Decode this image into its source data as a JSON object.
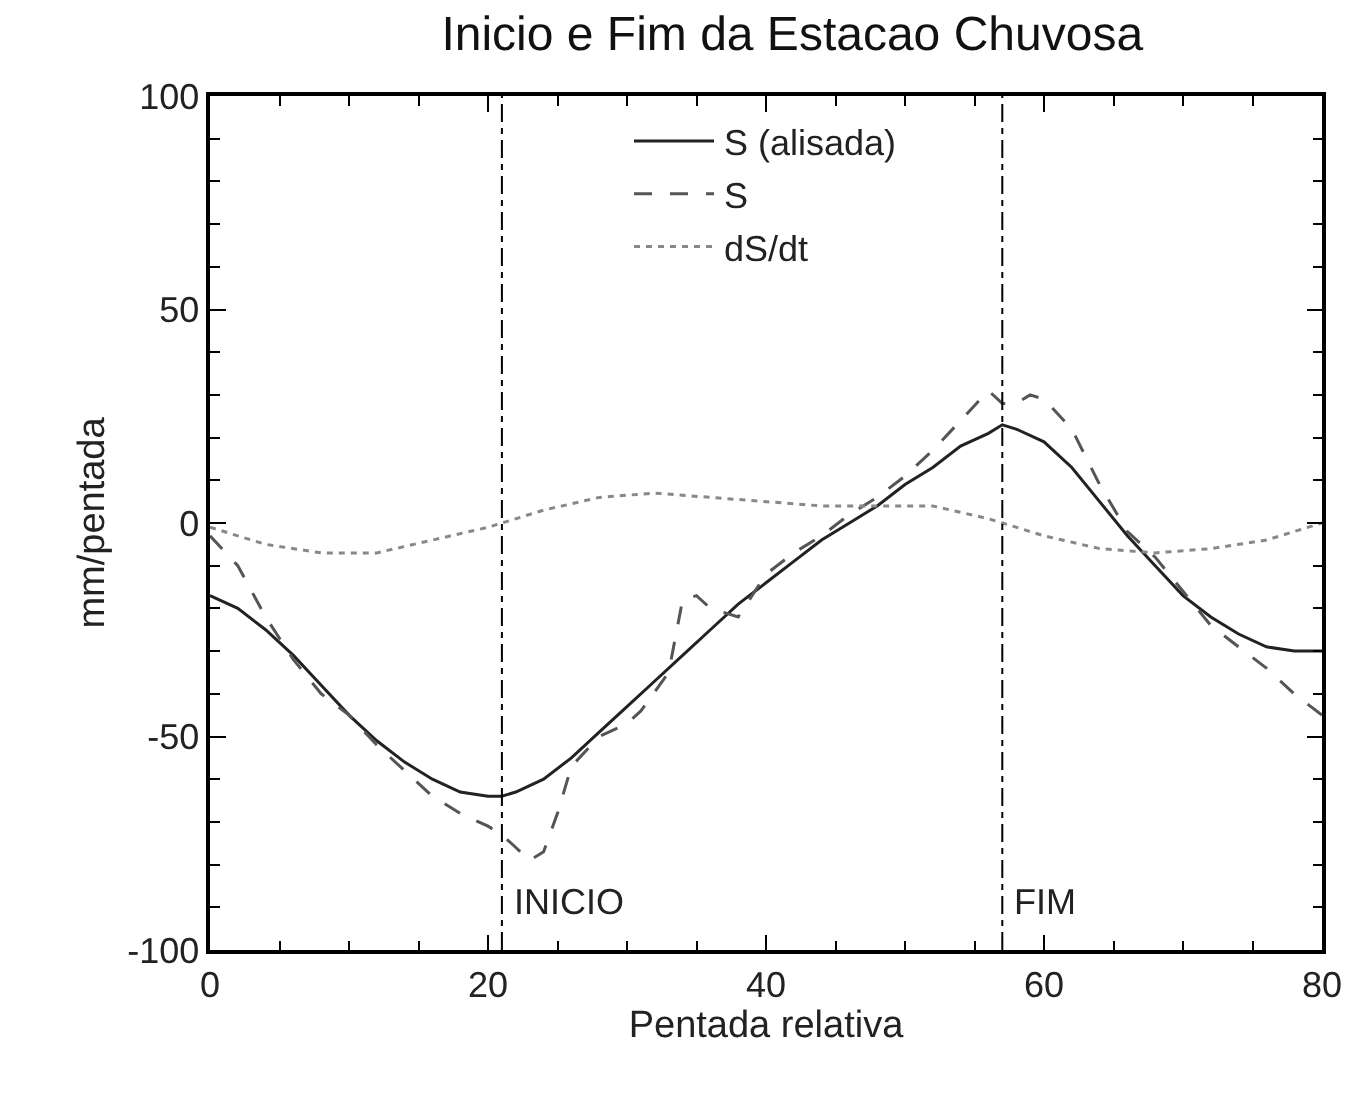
{
  "chart_data": {
    "type": "line",
    "title": "Inicio e Fim da Estacao Chuvosa",
    "xlabel": "Pentada relativa",
    "ylabel": "mm/pentada",
    "xlim": [
      0,
      80
    ],
    "xticks": [
      0,
      20,
      40,
      60,
      80
    ],
    "ylim": [
      -100,
      100
    ],
    "yticks": [
      -100,
      -50,
      0,
      50,
      100
    ],
    "legend": "top",
    "series": [
      {
        "name": "S (alisada)",
        "color": "#222222",
        "line_style": "solid",
        "x": [
          0,
          2,
          4,
          6,
          8,
          10,
          12,
          14,
          16,
          18,
          20,
          21,
          22,
          24,
          26,
          28,
          30,
          32,
          34,
          36,
          38,
          40,
          42,
          44,
          46,
          48,
          50,
          52,
          54,
          56,
          57,
          58,
          60,
          62,
          64,
          66,
          68,
          70,
          72,
          74,
          76,
          78,
          80
        ],
        "values": [
          -17,
          -20,
          -25,
          -31,
          -38,
          -45,
          -51,
          -56,
          -60,
          -63,
          -64,
          -64,
          -63,
          -60,
          -55,
          -49,
          -43,
          -37,
          -31,
          -25,
          -19,
          -14,
          -9,
          -4,
          0,
          4,
          9,
          13,
          18,
          21,
          23,
          22,
          19,
          13,
          5,
          -3,
          -10,
          -17,
          -22,
          -26,
          -29,
          -30,
          -30
        ]
      },
      {
        "name": "S",
        "color": "#555555",
        "line_style": "dashed",
        "x": [
          0,
          2,
          4,
          6,
          8,
          10,
          12,
          14,
          16,
          18,
          20,
          21,
          22,
          23,
          24,
          25,
          26,
          28,
          30,
          31,
          33,
          34,
          35,
          36,
          38,
          40,
          42,
          44,
          46,
          48,
          50,
          52,
          54,
          56,
          57,
          58,
          59,
          60,
          62,
          64,
          66,
          68,
          70,
          72,
          74,
          76,
          78,
          80
        ],
        "values": [
          -3,
          -10,
          -22,
          -32,
          -40,
          -45,
          -52,
          -58,
          -64,
          -68,
          -71,
          -73,
          -76,
          -79,
          -77,
          -68,
          -57,
          -50,
          -47,
          -44,
          -35,
          -18,
          -17,
          -20,
          -22,
          -12,
          -7,
          -3,
          2,
          6,
          11,
          17,
          24,
          31,
          28,
          28,
          30,
          29,
          22,
          9,
          -2,
          -8,
          -16,
          -24,
          -29,
          -34,
          -40,
          -45
        ]
      },
      {
        "name": "dS/dt",
        "color": "#888888",
        "line_style": "dotted",
        "x": [
          0,
          4,
          8,
          12,
          16,
          20,
          21,
          24,
          28,
          32,
          36,
          40,
          44,
          48,
          52,
          56,
          57,
          60,
          64,
          68,
          72,
          76,
          80
        ],
        "values": [
          -1,
          -5,
          -7,
          -7,
          -4,
          -1,
          0,
          3,
          6,
          7,
          6,
          5,
          4,
          4,
          4,
          1,
          0,
          -3,
          -6,
          -7,
          -6,
          -4,
          0
        ]
      }
    ],
    "ref_lines": [
      {
        "axis": "x",
        "value": 21,
        "label": "INICIO",
        "color": "#000000",
        "line_style": "dashdot"
      },
      {
        "axis": "x",
        "value": 57,
        "label": "FIM",
        "color": "#000000",
        "line_style": "dashdot"
      }
    ]
  }
}
